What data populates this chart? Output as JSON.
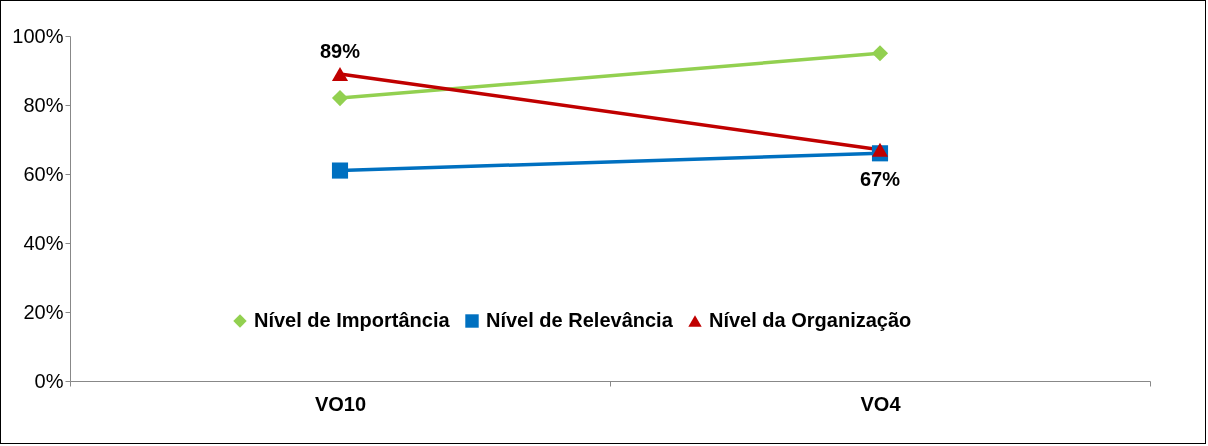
{
  "chart_data": {
    "type": "line",
    "categories": [
      "VO10",
      "VO4"
    ],
    "series": [
      {
        "name": "Nível de Importância",
        "color": "#92d050",
        "marker": "diamond",
        "values": [
          82,
          95
        ]
      },
      {
        "name": "Nível de Relevância",
        "color": "#0070c0",
        "marker": "square",
        "values": [
          61,
          66
        ]
      },
      {
        "name": "Nível da Organização",
        "color": "#c00000",
        "marker": "triangle",
        "values": [
          89,
          67
        ],
        "value_labels": [
          "89%",
          "67%"
        ]
      }
    ],
    "ylim": [
      0,
      100
    ],
    "yticks": [
      {
        "value": 0,
        "label": "0%"
      },
      {
        "value": 20,
        "label": "20%"
      },
      {
        "value": 40,
        "label": "40%"
      },
      {
        "value": 60,
        "label": "60%"
      },
      {
        "value": 80,
        "label": "80%"
      },
      {
        "value": 100,
        "label": "100%"
      }
    ],
    "grid": false,
    "legend": "bottom"
  }
}
